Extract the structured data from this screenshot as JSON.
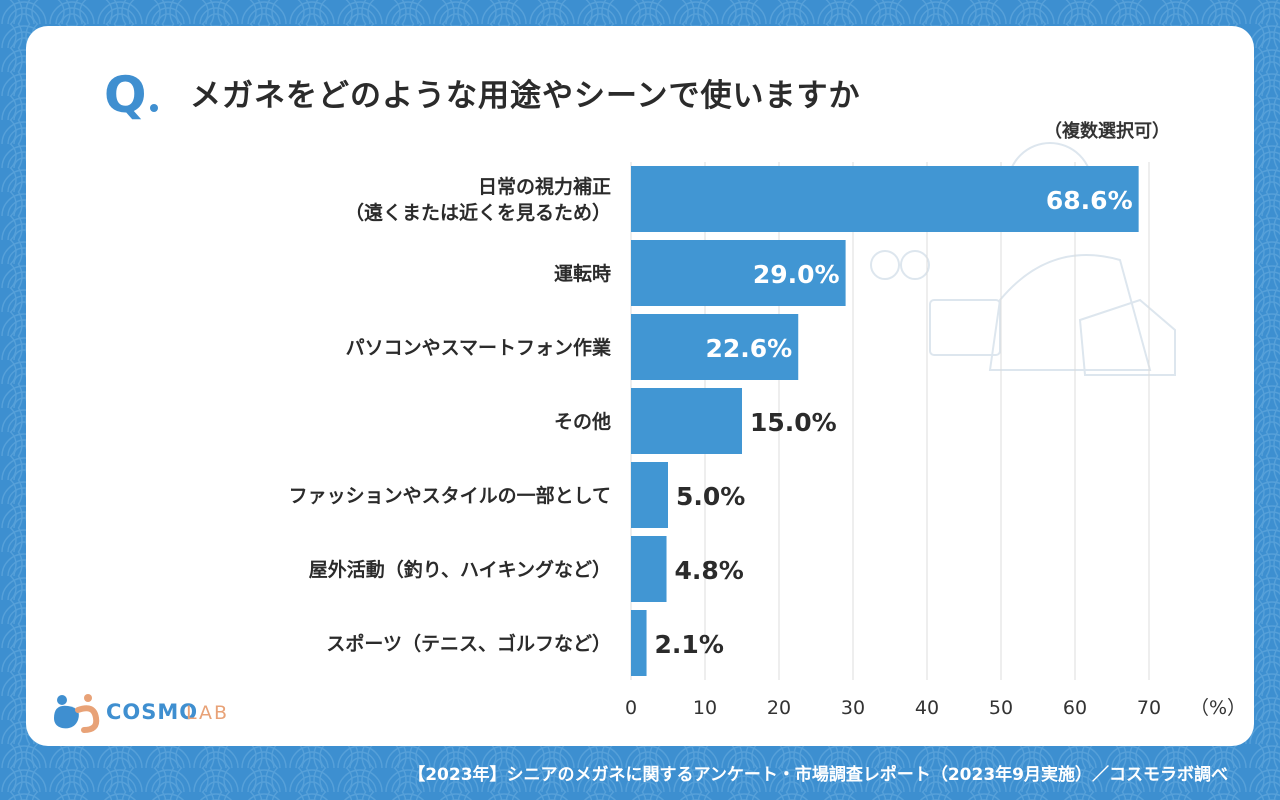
{
  "question": {
    "mark": "Q",
    "text": "メガネをどのような用途やシーンで使いますか",
    "note": "（複数選択可）"
  },
  "chart_data": {
    "type": "bar",
    "orientation": "horizontal",
    "categories": [
      [
        "日常の視力補正",
        "（遠くまたは近くを見るため）"
      ],
      [
        "運転時"
      ],
      [
        "パソコンやスマートフォン作業"
      ],
      [
        "その他"
      ],
      [
        "ファッションやスタイルの一部として"
      ],
      [
        "屋外活動（釣り、ハイキングなど）"
      ],
      [
        "スポーツ（テニス、ゴルフなど）"
      ]
    ],
    "values": [
      68.6,
      29.0,
      22.6,
      15.0,
      5.0,
      4.8,
      2.1
    ],
    "value_labels": [
      "68.6%",
      "29.0%",
      "22.6%",
      "15.0%",
      "5.0%",
      "4.8%",
      "2.1%"
    ],
    "xlim": [
      0,
      70
    ],
    "xticks": [
      "0",
      "10",
      "20",
      "30",
      "40",
      "50",
      "60",
      "70"
    ],
    "unit_label": "（%）",
    "grid": true,
    "bar_color": "#4196d3"
  },
  "logo": {
    "word1": "COSMO",
    "word2": "LAB"
  },
  "footer": "【2023年】シニアのメガネに関するアンケート・市場調査レポート（2023年9月実施）／コスモラボ調べ",
  "colors": {
    "background": "#3d8fd0",
    "accent": "#3f8fd0",
    "logo_orange": "#e8a277"
  }
}
